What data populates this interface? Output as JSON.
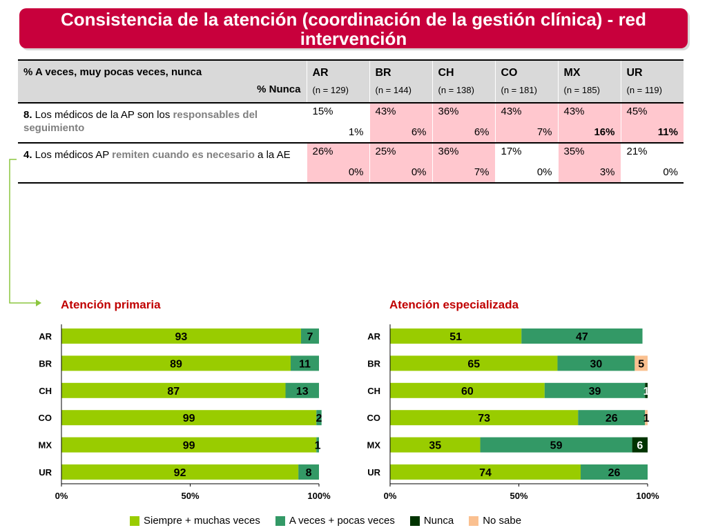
{
  "title": "Consistencia de la atención (coordinación de la gestión clínica) - red intervención",
  "table": {
    "header_line1": "% A veces, muy pocas veces, nunca",
    "header_line2": "% Nunca",
    "countries": [
      {
        "code": "AR",
        "n": "(n = 129)"
      },
      {
        "code": "BR",
        "n": "(n = 144)"
      },
      {
        "code": "CH",
        "n": "(n = 138)"
      },
      {
        "code": "CO",
        "n": "(n = 181)"
      },
      {
        "code": "MX",
        "n": "(n = 185)"
      },
      {
        "code": "UR",
        "n": "(n = 119)"
      }
    ],
    "rows": [
      {
        "num": "8.",
        "text_a": " Los médicos de la AP son los ",
        "highlight": "responsables del seguimiento",
        "text_b": "",
        "cells": [
          {
            "a": "15%",
            "b": "1%",
            "pink": false,
            "bold": false
          },
          {
            "a": "43%",
            "b": "6%",
            "pink": true,
            "bold": false
          },
          {
            "a": "36%",
            "b": "6%",
            "pink": true,
            "bold": false
          },
          {
            "a": "43%",
            "b": "7%",
            "pink": true,
            "bold": false
          },
          {
            "a": "43%",
            "b": "16%",
            "pink": true,
            "bold": true
          },
          {
            "a": "45%",
            "b": "11%",
            "pink": true,
            "bold": true
          }
        ]
      },
      {
        "num": "4.",
        "text_a": " Los médicos AP ",
        "highlight": "remiten cuando es necesario",
        "text_b": " a la AE",
        "cells": [
          {
            "a": "26%",
            "b": "0%",
            "pink": true,
            "bold": false
          },
          {
            "a": "25%",
            "b": "0%",
            "pink": true,
            "bold": false
          },
          {
            "a": "36%",
            "b": "7%",
            "pink": true,
            "bold": false
          },
          {
            "a": "17%",
            "b": "0%",
            "pink": false,
            "bold": false
          },
          {
            "a": "35%",
            "b": "3%",
            "pink": true,
            "bold": false
          },
          {
            "a": "21%",
            "b": "0%",
            "pink": false,
            "bold": false
          }
        ]
      }
    ]
  },
  "colors": {
    "siempre": "#99cc00",
    "aveces": "#339966",
    "nunca": "#003300",
    "nosabe": "#fac090",
    "arrow": "#8cc63f"
  },
  "chart_data": [
    {
      "type": "bar",
      "orientation": "horizontal-stacked-100",
      "title": "Atención primaria",
      "categories": [
        "AR",
        "BR",
        "CH",
        "CO",
        "MX",
        "UR"
      ],
      "series": [
        {
          "name": "Siempre + muchas veces",
          "key": "siempre",
          "values": [
            93,
            89,
            87,
            99,
            99,
            92
          ]
        },
        {
          "name": "A veces + pocas veces",
          "key": "aveces",
          "values": [
            7,
            11,
            13,
            2,
            1,
            8
          ]
        },
        {
          "name": "Nunca",
          "key": "nunca",
          "values": [
            0,
            0,
            0,
            0,
            0,
            0
          ]
        },
        {
          "name": "No sabe",
          "key": "nosabe",
          "values": [
            0,
            0,
            0,
            0,
            0,
            0
          ]
        }
      ],
      "xticks": [
        "0%",
        "50%",
        "100%"
      ],
      "xlim": [
        0,
        100
      ]
    },
    {
      "type": "bar",
      "orientation": "horizontal-stacked-100",
      "title": "Atención especializada",
      "categories": [
        "AR",
        "BR",
        "CH",
        "CO",
        "MX",
        "UR"
      ],
      "series": [
        {
          "name": "Siempre + muchas veces",
          "key": "siempre",
          "values": [
            51,
            65,
            60,
            73,
            35,
            74
          ]
        },
        {
          "name": "A veces + pocas veces",
          "key": "aveces",
          "values": [
            47,
            30,
            39,
            26,
            59,
            26
          ]
        },
        {
          "name": "Nunca",
          "key": "nunca",
          "values": [
            0,
            0,
            1,
            0,
            6,
            0
          ]
        },
        {
          "name": "No sabe",
          "key": "nosabe",
          "values": [
            0,
            5,
            0,
            1,
            0,
            0
          ]
        }
      ],
      "xticks": [
        "0%",
        "50%",
        "100%"
      ],
      "xlim": [
        0,
        100
      ]
    }
  ],
  "legend": [
    {
      "label": "Siempre + muchas veces",
      "key": "siempre"
    },
    {
      "label": "A veces + pocas veces",
      "key": "aveces"
    },
    {
      "label": "Nunca",
      "key": "nunca"
    },
    {
      "label": "No sabe",
      "key": "nosabe"
    }
  ]
}
